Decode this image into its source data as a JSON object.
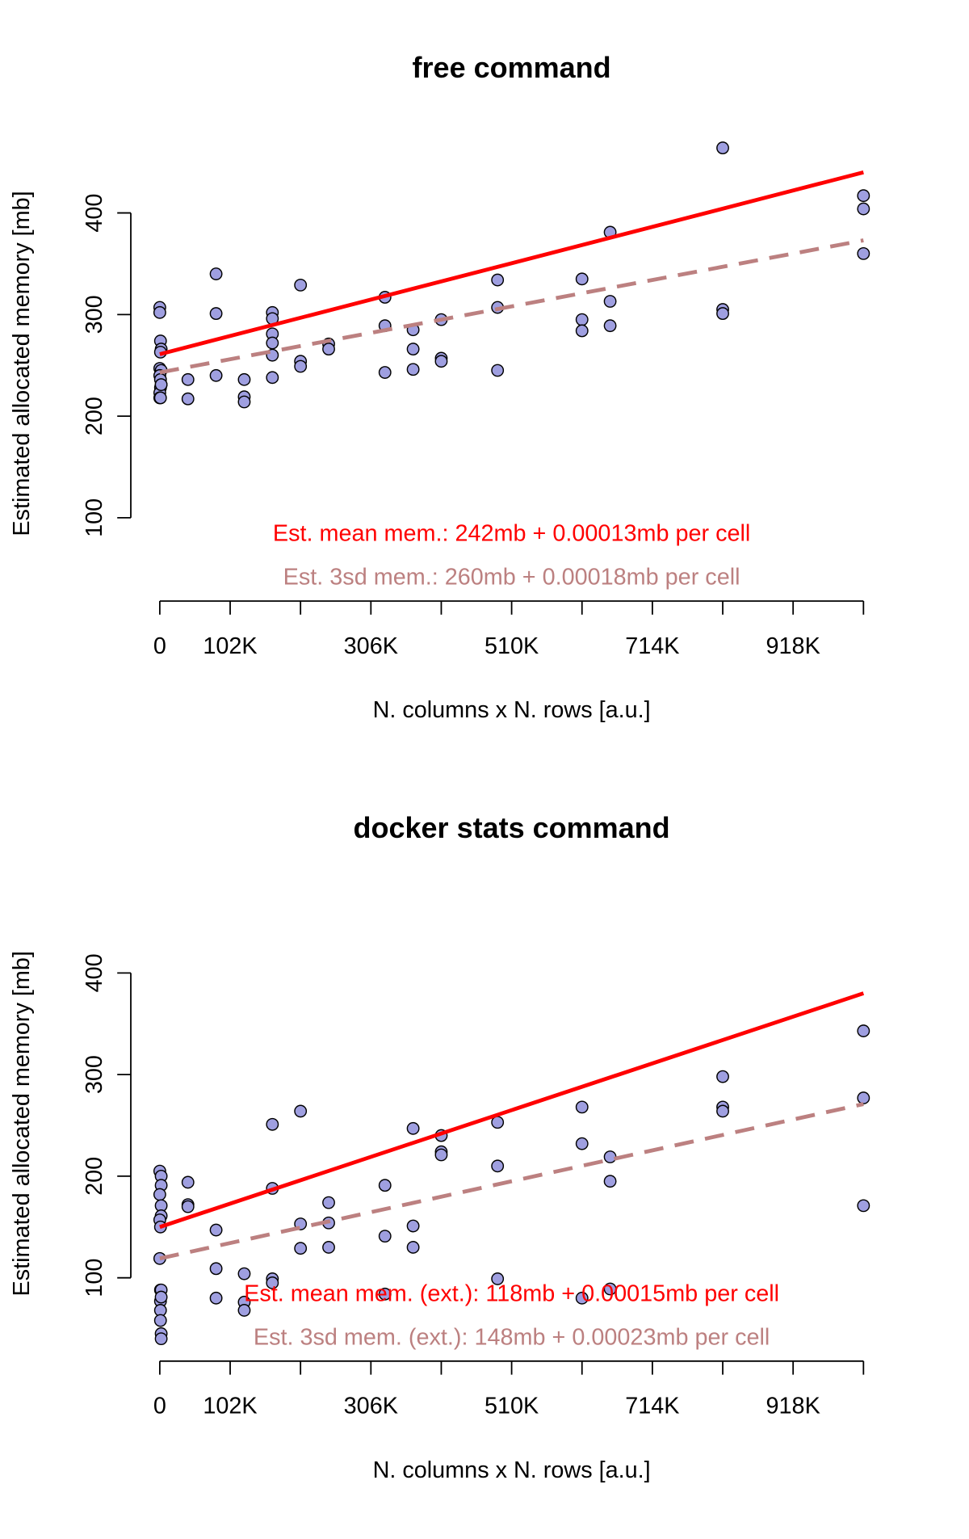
{
  "chart_data": [
    {
      "type": "scatter",
      "title": "free command",
      "xlabel": "N. columns x N. rows [a.u.]",
      "ylabel": "Estimated allocated memory [mb]",
      "point_color": "#9f9fe0",
      "x": [
        0,
        0,
        1000,
        2000,
        1000,
        0,
        2000,
        0,
        1000,
        2000,
        1000,
        0,
        0,
        2000,
        1000,
        40800,
        40800,
        81600,
        81600,
        81600,
        122400,
        122400,
        122400,
        163200,
        163200,
        163200,
        163200,
        163200,
        163200,
        204000,
        204000,
        204000,
        244800,
        244800,
        326400,
        326400,
        326400,
        367200,
        367200,
        367200,
        408000,
        408000,
        408000,
        489600,
        489600,
        489600,
        612000,
        612000,
        612000,
        652800,
        652800,
        652800,
        816000,
        816000,
        816000,
        1020000,
        1020000,
        1020000
      ],
      "y": [
        307,
        302,
        274,
        266,
        263,
        247,
        245,
        240,
        236,
        231,
        228,
        223,
        218,
        231,
        218,
        236,
        217,
        340,
        301,
        240,
        236,
        219,
        214,
        302,
        296,
        281,
        272,
        260,
        238,
        329,
        254,
        249,
        271,
        266,
        317,
        289,
        243,
        285,
        266,
        246,
        295,
        257,
        254,
        334,
        307,
        245,
        335,
        295,
        284,
        381,
        313,
        289,
        464,
        305,
        301,
        417,
        404,
        360
      ],
      "xlim": [
        -42000,
        1062000
      ],
      "ylim": [
        18,
        476
      ],
      "xticks": [
        0,
        {
          "value": 102000,
          "label": "102K"
        },
        {
          "value": 204000,
          "label": null
        },
        {
          "value": 306000,
          "label": "306K"
        },
        {
          "value": 408000,
          "label": null
        },
        {
          "value": 510000,
          "label": "510K"
        },
        {
          "value": 612000,
          "label": null
        },
        {
          "value": 714000,
          "label": "714K"
        },
        {
          "value": 816000,
          "label": null
        },
        {
          "value": 918000,
          "label": "918K"
        },
        {
          "value": 1020000,
          "label": null
        }
      ],
      "yticks": [
        100,
        200,
        300,
        400
      ],
      "lines": [
        {
          "color": "#ff0000",
          "style": "solid",
          "x": [
            0,
            1020000
          ],
          "y": [
            261,
            440
          ]
        },
        {
          "color": "#bc8080",
          "style": "dashed",
          "x": [
            0,
            1020000
          ],
          "y": [
            243,
            373
          ]
        }
      ],
      "annotations": [
        {
          "text": "Est. mean mem.: 242mb + 0.00013mb per cell",
          "color": "#ff0000"
        },
        {
          "text": "Est. 3sd mem.: 260mb + 0.00018mb per cell",
          "color": "#bc8080"
        }
      ]
    },
    {
      "type": "scatter",
      "title": "docker stats command",
      "xlabel": "N. columns x N. rows [a.u.]",
      "ylabel": "Estimated allocated memory [mb]",
      "point_color": "#9f9fe0",
      "x": [
        0,
        2000,
        2000,
        0,
        2000,
        2000,
        0,
        1000,
        0,
        1000,
        2000,
        1000,
        2000,
        1000,
        1000,
        2000,
        2000,
        40800,
        40800,
        40800,
        81600,
        81600,
        81600,
        122400,
        122400,
        122400,
        163200,
        163200,
        163200,
        163200,
        204000,
        204000,
        204000,
        244800,
        244800,
        244800,
        326400,
        326400,
        326400,
        367200,
        367200,
        367200,
        408000,
        408000,
        408000,
        489600,
        489600,
        489600,
        612000,
        612000,
        612000,
        652800,
        652800,
        652800,
        816000,
        816000,
        816000,
        1020000,
        1020000,
        1020000
      ],
      "y": [
        205,
        200,
        191,
        182,
        171,
        161,
        157,
        150,
        119,
        88,
        88,
        77,
        81,
        68,
        58,
        45,
        40,
        194,
        172,
        170,
        147,
        109,
        80,
        104,
        76,
        68,
        251,
        188,
        99,
        95,
        264,
        153,
        129,
        174,
        154,
        130,
        191,
        141,
        84,
        247,
        151,
        130,
        240,
        224,
        221,
        253,
        210,
        99,
        268,
        232,
        80,
        219,
        195,
        89,
        298,
        268,
        264,
        343,
        277,
        171
      ],
      "xlim": [
        -42000,
        1062000
      ],
      "ylim": [
        18,
        476
      ],
      "xticks": [
        0,
        {
          "value": 102000,
          "label": "102K"
        },
        {
          "value": 204000,
          "label": null
        },
        {
          "value": 306000,
          "label": "306K"
        },
        {
          "value": 408000,
          "label": null
        },
        {
          "value": 510000,
          "label": "510K"
        },
        {
          "value": 612000,
          "label": null
        },
        {
          "value": 714000,
          "label": "714K"
        },
        {
          "value": 816000,
          "label": null
        },
        {
          "value": 918000,
          "label": "918K"
        },
        {
          "value": 1020000,
          "label": null
        }
      ],
      "yticks": [
        100,
        200,
        300,
        400
      ],
      "lines": [
        {
          "color": "#ff0000",
          "style": "solid",
          "x": [
            0,
            1020000
          ],
          "y": [
            150,
            380
          ]
        },
        {
          "color": "#bc8080",
          "style": "dashed",
          "x": [
            0,
            1020000
          ],
          "y": [
            119,
            271
          ]
        }
      ],
      "annotations": [
        {
          "text": "Est. mean mem. (ext.): 118mb + 0.00015mb per cell",
          "color": "#ff0000"
        },
        {
          "text": "Est. 3sd mem. (ext.): 148mb + 0.00023mb per cell",
          "color": "#bc8080"
        }
      ]
    }
  ]
}
